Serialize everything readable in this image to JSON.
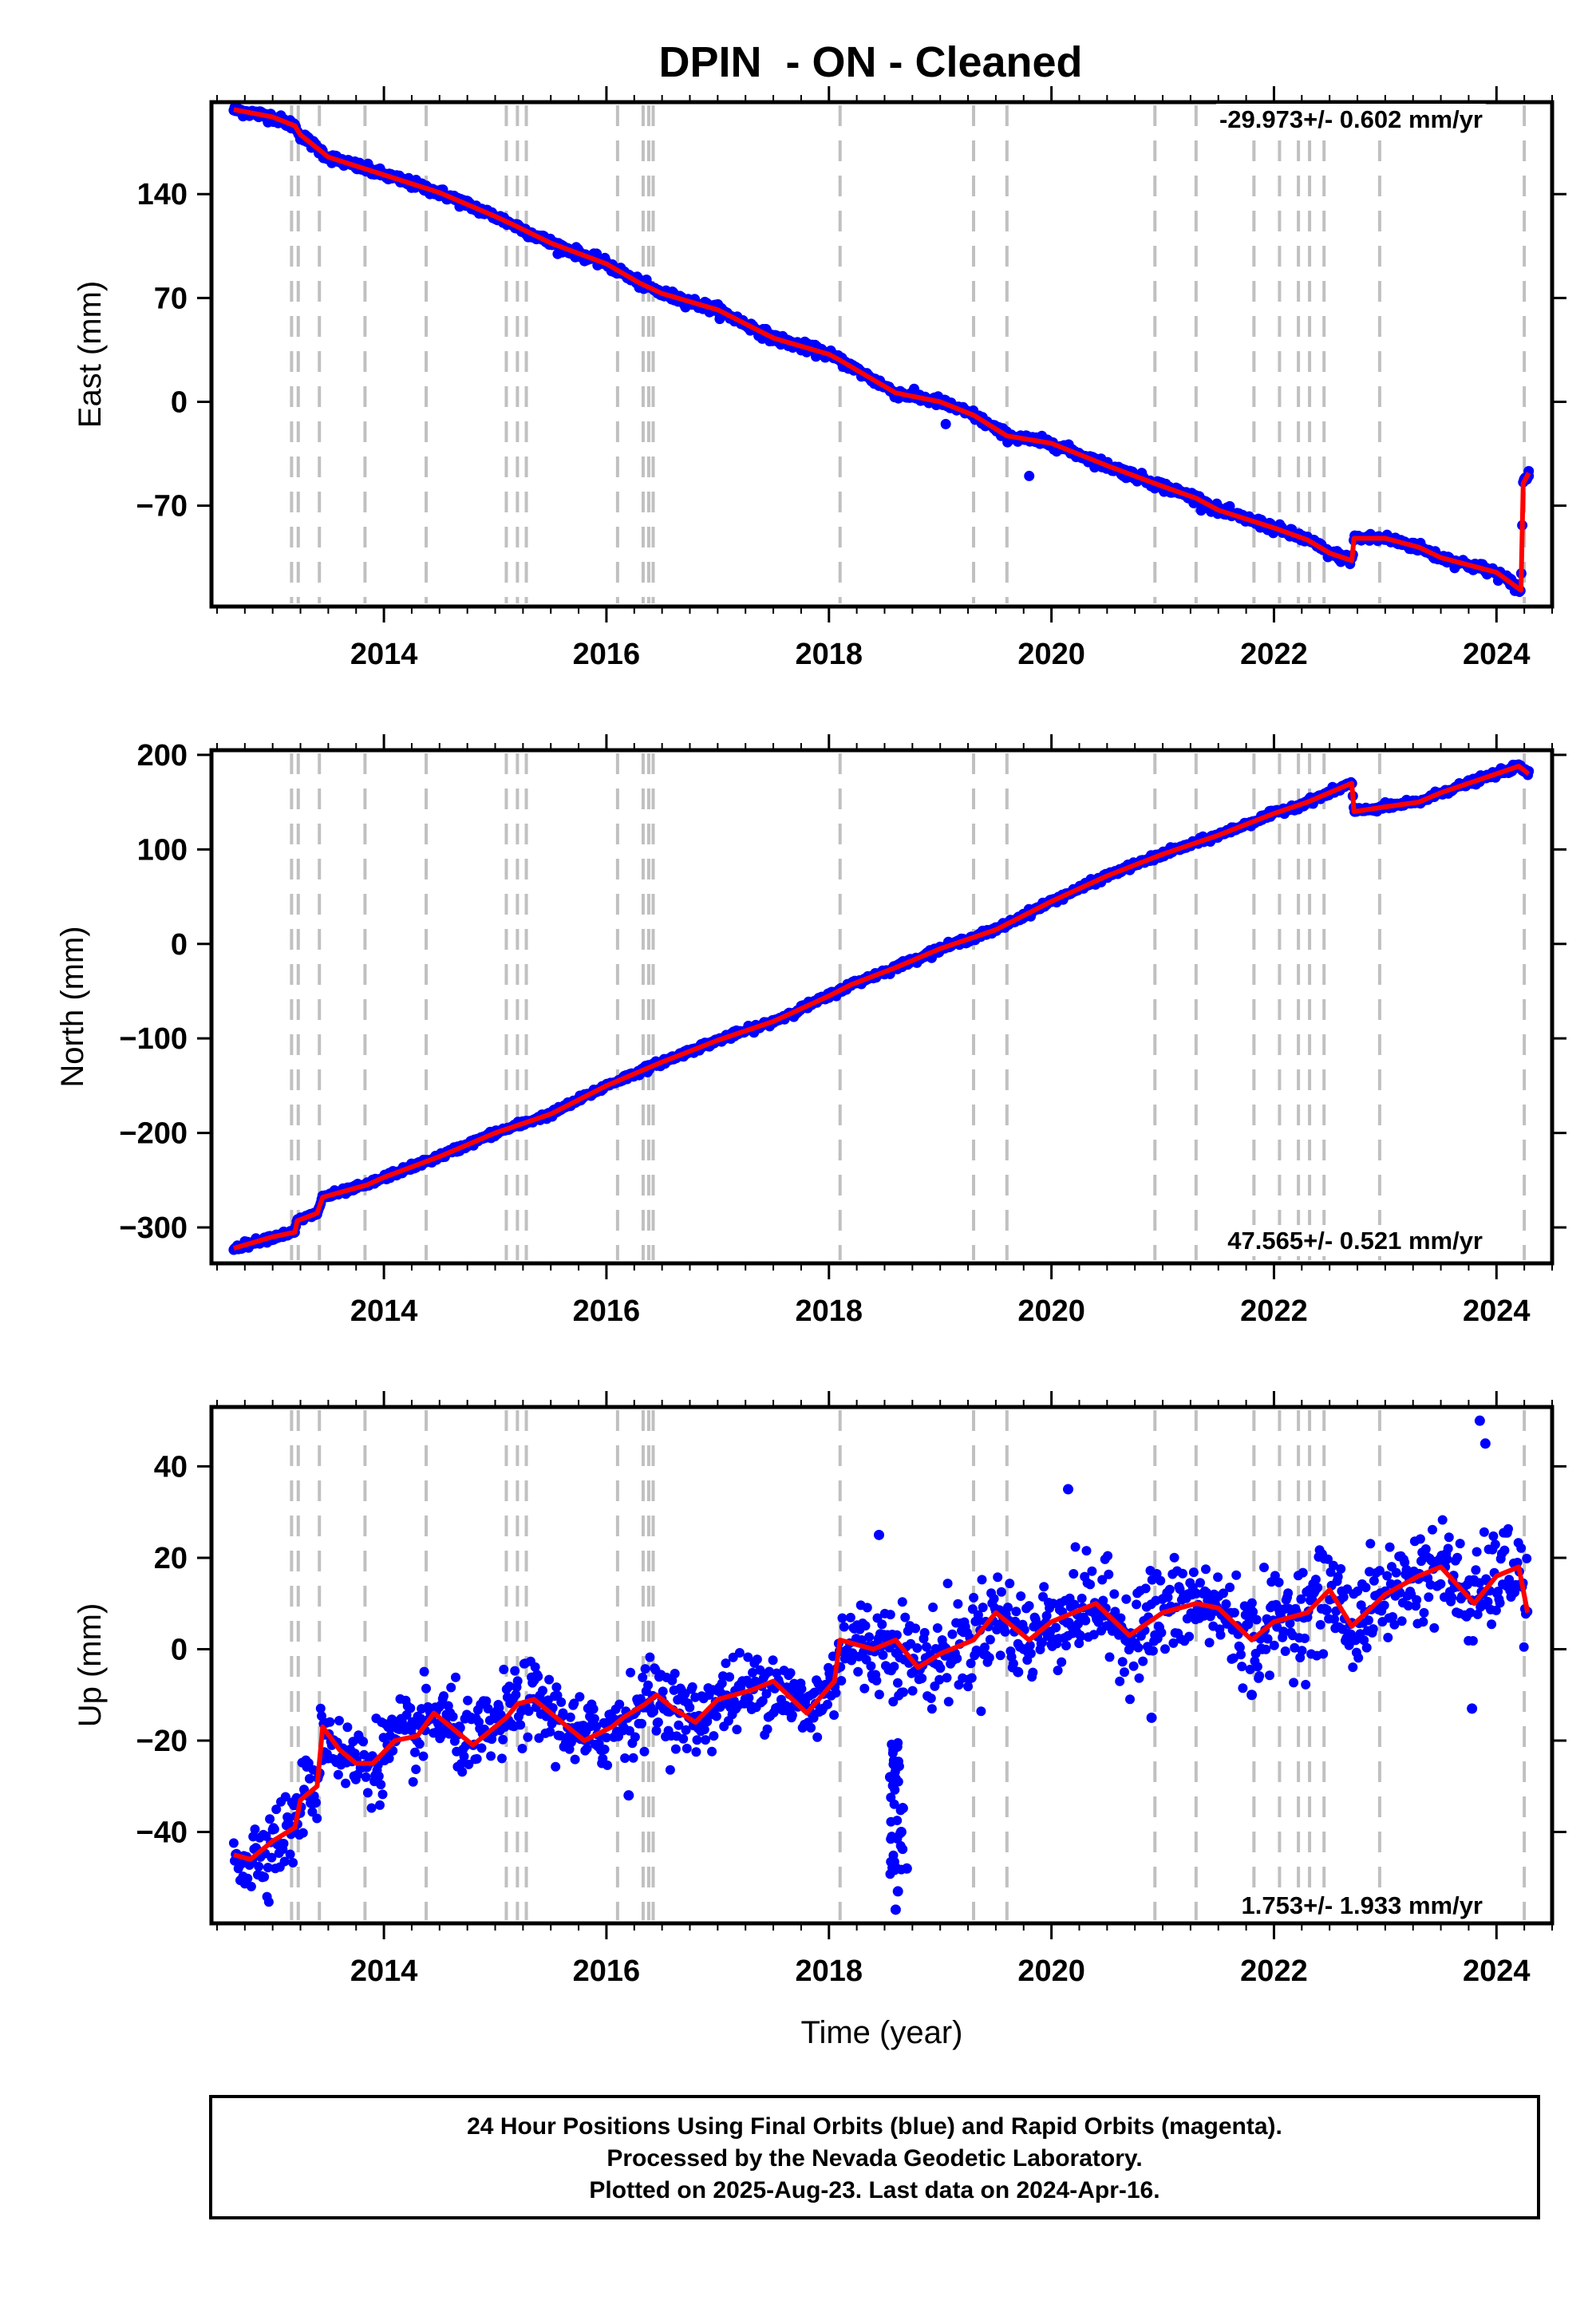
{
  "figure": {
    "title": "DPIN  - ON - Cleaned",
    "footer": [
      "24 Hour Positions Using Final Orbits (blue) and Rapid Orbits (magenta).",
      "Processed by the Nevada Geodetic Laboratory.",
      "Plotted on 2025-Aug-23. Last data on 2024-Apr-16."
    ],
    "colors": {
      "points": "#0000ff",
      "model": "#ff0000",
      "events": "#c0c0c0"
    }
  },
  "chart_data": [
    {
      "type": "scatter",
      "panel": "east",
      "ylabel": "East (mm)",
      "xlabel": "",
      "rate_label": "-29.973+/- 0.602 mm/yr",
      "xlim": [
        2012.45,
        2024.5
      ],
      "ylim": [
        -138,
        202
      ],
      "yticks": [
        -70,
        0,
        70,
        140
      ],
      "xticks": [
        2014,
        2016,
        2018,
        2020,
        2022,
        2024
      ],
      "x_tick_labels": [
        "2014",
        "2016",
        "2018",
        "2020",
        "2022",
        "2024"
      ],
      "model": [
        [
          2012.65,
          197
        ],
        [
          2013.0,
          192
        ],
        [
          2013.2,
          186
        ],
        [
          2013.25,
          180
        ],
        [
          2013.5,
          165
        ],
        [
          2014.0,
          153
        ],
        [
          2014.5,
          141
        ],
        [
          2015.0,
          125
        ],
        [
          2015.2,
          118
        ],
        [
          2015.5,
          107
        ],
        [
          2016.0,
          93
        ],
        [
          2016.3,
          80
        ],
        [
          2016.5,
          73
        ],
        [
          2017.0,
          62
        ],
        [
          2017.5,
          43
        ],
        [
          2018.0,
          32
        ],
        [
          2018.1,
          28
        ],
        [
          2018.6,
          6
        ],
        [
          2019.0,
          0
        ],
        [
          2019.3,
          -9
        ],
        [
          2019.6,
          -23
        ],
        [
          2020.0,
          -28
        ],
        [
          2020.5,
          -43
        ],
        [
          2021.0,
          -57
        ],
        [
          2021.3,
          -65
        ],
        [
          2021.5,
          -73
        ],
        [
          2022.0,
          -85
        ],
        [
          2022.3,
          -93
        ],
        [
          2022.5,
          -102
        ],
        [
          2022.7,
          -107
        ],
        [
          2022.72,
          -92
        ],
        [
          2023.0,
          -92
        ],
        [
          2023.3,
          -98
        ],
        [
          2023.5,
          -105
        ],
        [
          2024.0,
          -115
        ],
        [
          2024.22,
          -127
        ],
        [
          2024.24,
          -55
        ],
        [
          2024.29,
          -48
        ]
      ],
      "outliers": [
        [
          2019.05,
          -15
        ],
        [
          2019.8,
          -50
        ],
        [
          2024.29,
          -50
        ]
      ]
    },
    {
      "type": "scatter",
      "panel": "north",
      "ylabel": "North (mm)",
      "xlabel": "",
      "rate_label": "47.565+/- 0.521 mm/yr",
      "xlim": [
        2012.45,
        2024.5
      ],
      "ylim": [
        -338,
        205
      ],
      "yticks": [
        -300,
        -200,
        -100,
        0,
        100,
        200
      ],
      "xticks": [
        2014,
        2016,
        2018,
        2020,
        2022,
        2024
      ],
      "x_tick_labels": [
        "2014",
        "2016",
        "2018",
        "2020",
        "2022",
        "2024"
      ],
      "model": [
        [
          2012.65,
          -322
        ],
        [
          2013.0,
          -310
        ],
        [
          2013.2,
          -305
        ],
        [
          2013.22,
          -293
        ],
        [
          2013.4,
          -285
        ],
        [
          2013.45,
          -268
        ],
        [
          2013.85,
          -255
        ],
        [
          2014.0,
          -247
        ],
        [
          2014.5,
          -225
        ],
        [
          2015.0,
          -200
        ],
        [
          2015.5,
          -180
        ],
        [
          2016.0,
          -150
        ],
        [
          2016.5,
          -125
        ],
        [
          2017.0,
          -102
        ],
        [
          2017.5,
          -82
        ],
        [
          2018.0,
          -55
        ],
        [
          2018.2,
          -43
        ],
        [
          2018.6,
          -25
        ],
        [
          2019.0,
          -5
        ],
        [
          2019.5,
          15
        ],
        [
          2020.0,
          45
        ],
        [
          2020.5,
          72
        ],
        [
          2021.0,
          95
        ],
        [
          2021.5,
          115
        ],
        [
          2022.0,
          138
        ],
        [
          2022.3,
          150
        ],
        [
          2022.7,
          170
        ],
        [
          2022.72,
          140
        ],
        [
          2023.0,
          145
        ],
        [
          2023.3,
          150
        ],
        [
          2023.5,
          160
        ],
        [
          2024.0,
          180
        ],
        [
          2024.2,
          188
        ],
        [
          2024.29,
          180
        ]
      ],
      "outliers": []
    },
    {
      "type": "scatter",
      "panel": "up",
      "ylabel": "Up (mm)",
      "xlabel": "Time (year)",
      "rate_label": "1.753+/- 1.933 mm/yr",
      "xlim": [
        2012.45,
        2024.5
      ],
      "ylim": [
        -60,
        53
      ],
      "yticks": [
        -40,
        -20,
        0,
        20,
        40
      ],
      "xticks": [
        2014,
        2016,
        2018,
        2020,
        2022,
        2024
      ],
      "x_tick_labels": [
        "2014",
        "2016",
        "2018",
        "2020",
        "2022",
        "2024"
      ],
      "model": [
        [
          2012.65,
          -45
        ],
        [
          2012.8,
          -46
        ],
        [
          2013.0,
          -42
        ],
        [
          2013.2,
          -39
        ],
        [
          2013.25,
          -33
        ],
        [
          2013.4,
          -30
        ],
        [
          2013.45,
          -17
        ],
        [
          2013.6,
          -22
        ],
        [
          2013.75,
          -25
        ],
        [
          2013.9,
          -25
        ],
        [
          2014.1,
          -20
        ],
        [
          2014.3,
          -19
        ],
        [
          2014.45,
          -14
        ],
        [
          2014.65,
          -18
        ],
        [
          2014.8,
          -21
        ],
        [
          2015.0,
          -17
        ],
        [
          2015.1,
          -15
        ],
        [
          2015.2,
          -12
        ],
        [
          2015.35,
          -11
        ],
        [
          2015.5,
          -14
        ],
        [
          2015.8,
          -20
        ],
        [
          2016.05,
          -17
        ],
        [
          2016.15,
          -15
        ],
        [
          2016.35,
          -12
        ],
        [
          2016.45,
          -10
        ],
        [
          2016.6,
          -13
        ],
        [
          2016.8,
          -16
        ],
        [
          2017.0,
          -11
        ],
        [
          2017.3,
          -9
        ],
        [
          2017.5,
          -7
        ],
        [
          2017.8,
          -14
        ],
        [
          2018.05,
          -7
        ],
        [
          2018.1,
          2
        ],
        [
          2018.4,
          0
        ],
        [
          2018.6,
          2
        ],
        [
          2018.8,
          -4
        ],
        [
          2019.0,
          -1
        ],
        [
          2019.3,
          2
        ],
        [
          2019.5,
          8
        ],
        [
          2019.8,
          2
        ],
        [
          2020.0,
          6
        ],
        [
          2020.4,
          10
        ],
        [
          2020.7,
          3
        ],
        [
          2021.0,
          8
        ],
        [
          2021.3,
          10
        ],
        [
          2021.5,
          9
        ],
        [
          2021.8,
          2
        ],
        [
          2022.0,
          6
        ],
        [
          2022.3,
          8
        ],
        [
          2022.5,
          13
        ],
        [
          2022.7,
          5
        ],
        [
          2023.0,
          12
        ],
        [
          2023.3,
          16
        ],
        [
          2023.5,
          18
        ],
        [
          2023.8,
          10
        ],
        [
          2024.0,
          16
        ],
        [
          2024.2,
          18
        ],
        [
          2024.28,
          8
        ]
      ],
      "outliers": [
        [
          2023.85,
          50
        ],
        [
          2023.9,
          45
        ],
        [
          2020.15,
          35
        ],
        [
          2018.6,
          -57
        ],
        [
          2018.62,
          -53
        ],
        [
          2018.7,
          -48
        ],
        [
          2018.65,
          -40
        ],
        [
          2018.55,
          -28
        ],
        [
          2018.58,
          -22
        ],
        [
          2023.78,
          -13
        ],
        [
          2018.45,
          25
        ],
        [
          2019.7,
          -5
        ],
        [
          2020.9,
          -15
        ],
        [
          2021.8,
          -10
        ],
        [
          2016.2,
          -32
        ]
      ]
    }
  ],
  "events": [
    2013.17,
    2013.23,
    2013.42,
    2013.83,
    2014.38,
    2015.1,
    2015.2,
    2015.28,
    2016.1,
    2016.33,
    2016.38,
    2016.42,
    2018.1,
    2019.3,
    2019.6,
    2020.93,
    2021.3,
    2021.82,
    2022.05,
    2022.22,
    2022.32,
    2022.45,
    2022.95,
    2024.25
  ]
}
